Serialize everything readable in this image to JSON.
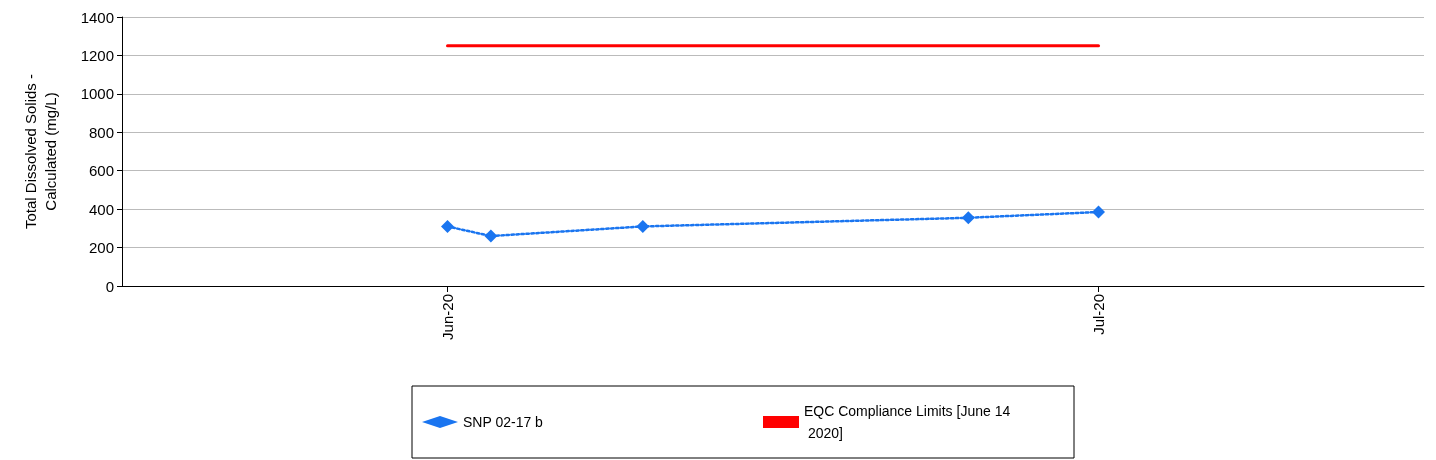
{
  "chart_data": {
    "type": "line",
    "ylabel": "Total Dissolved Solids -\nCalculated (mg/L)",
    "xlim": [
      "2020-05-17",
      "2020-07-16"
    ],
    "xticks": [
      {
        "value": "2020-06-01",
        "label": "Jun-20"
      },
      {
        "value": "2020-07-01",
        "label": "Jul-20"
      }
    ],
    "ylim": [
      0,
      1400
    ],
    "yticks": [
      0,
      200,
      400,
      600,
      800,
      1000,
      1200,
      1400
    ],
    "grid": "y",
    "legend": "bottom",
    "series": [
      {
        "name": "SNP 02-17 b",
        "color": "#1a75f0",
        "marker": "diamond",
        "line_style": "dotted",
        "x": [
          "2020-06-01",
          "2020-06-03",
          "2020-06-10",
          "2020-06-25",
          "2020-07-01"
        ],
        "values": [
          310,
          260,
          310,
          355,
          385
        ]
      },
      {
        "name": "EQC Compliance Limits [June 14 2020]",
        "color": "#ff0000",
        "marker": "none",
        "line_style": "solid",
        "x": [
          "2020-06-01",
          "2020-07-01"
        ],
        "values": [
          1250,
          1250
        ]
      }
    ]
  }
}
